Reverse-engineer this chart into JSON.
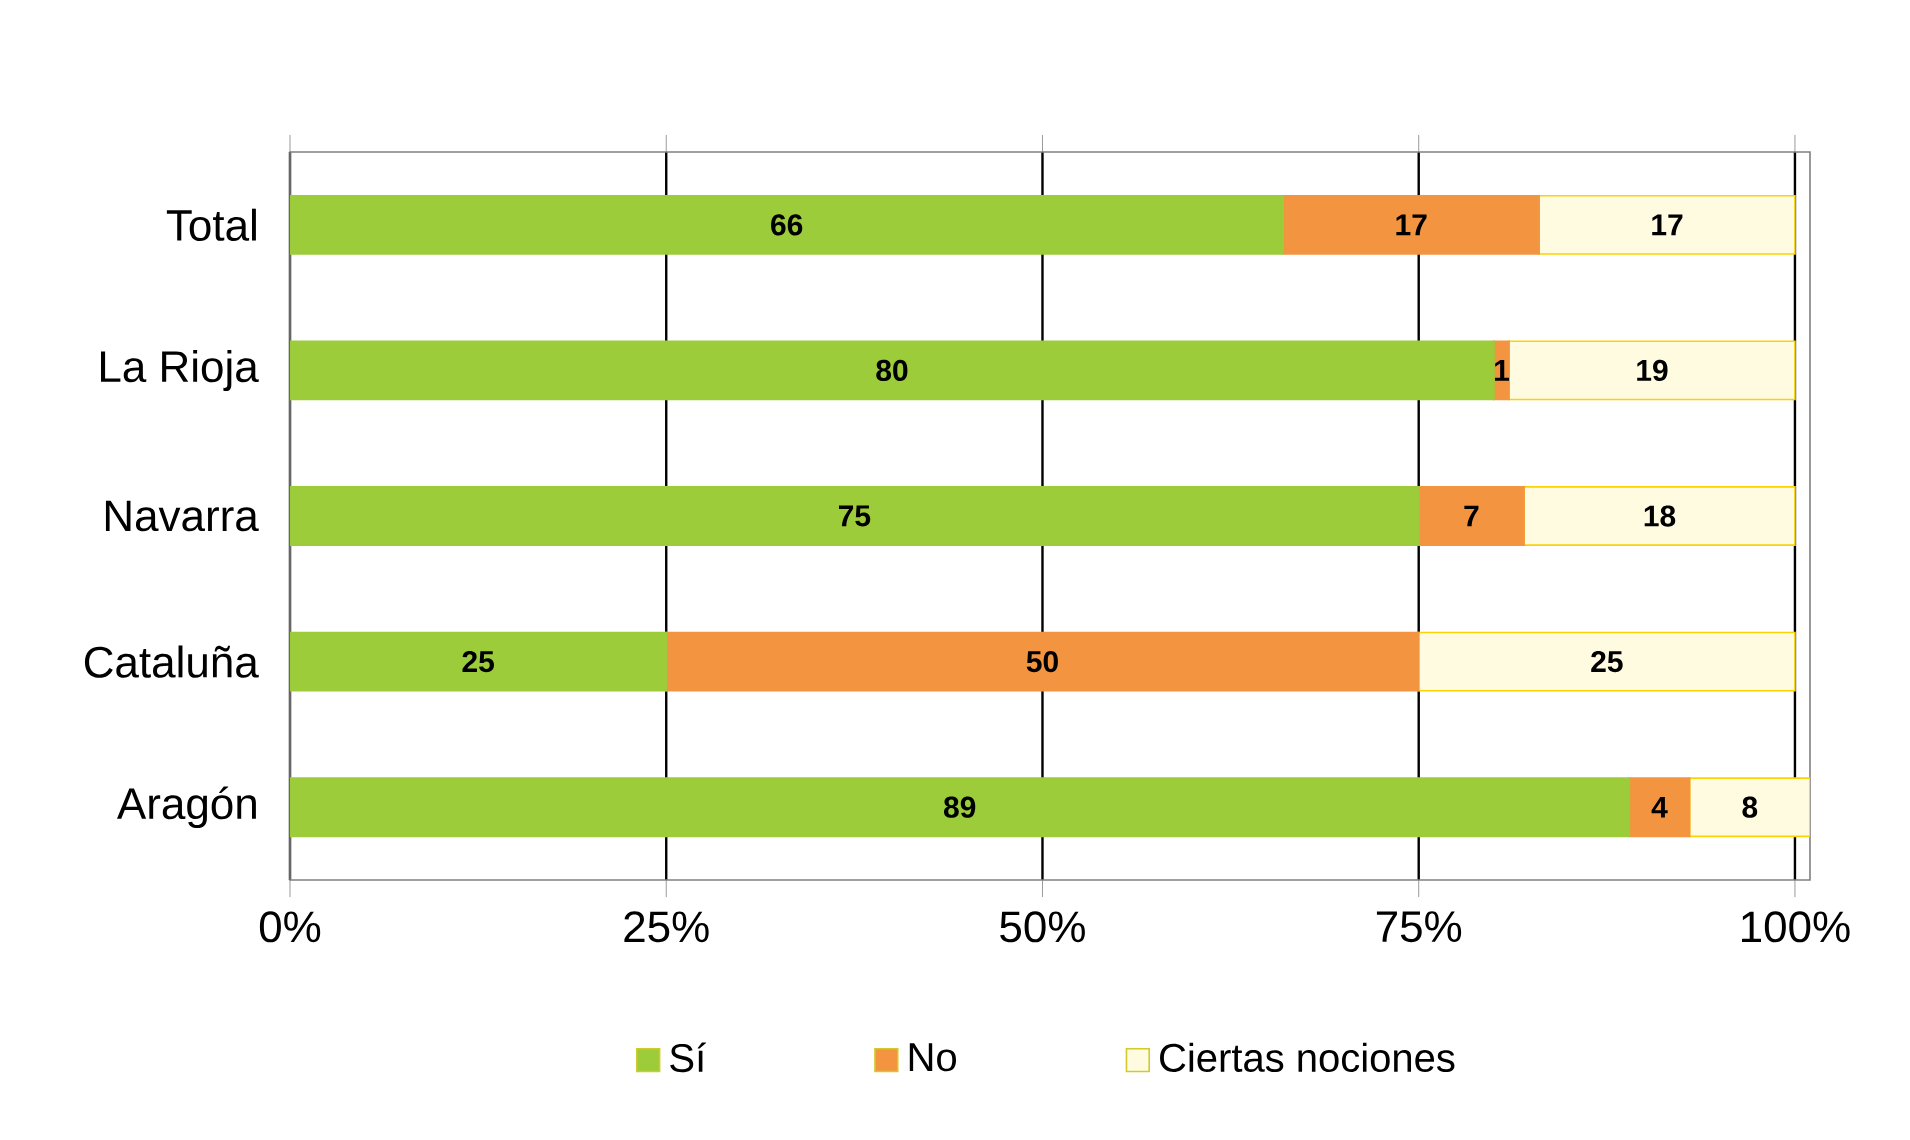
{
  "chart_data": {
    "type": "bar",
    "orientation": "horizontal",
    "stacked": true,
    "categories": [
      "Total",
      "La Rioja",
      "Navarra",
      "Cataluña",
      "Aragón"
    ],
    "series": [
      {
        "name": "Sí",
        "color": "#9ccc3a",
        "values": [
          66,
          80,
          75,
          25,
          89
        ]
      },
      {
        "name": "No",
        "color": "#f39440",
        "values": [
          17,
          1,
          7,
          50,
          4
        ]
      },
      {
        "name": "Ciertas nociones",
        "color": "#fffbe0",
        "values": [
          17,
          19,
          18,
          25,
          8
        ]
      }
    ],
    "xlim": [
      0,
      101
    ],
    "xticks": [
      {
        "value": 0,
        "label": "0%"
      },
      {
        "value": 25,
        "label": "25%"
      },
      {
        "value": 50,
        "label": "50%"
      },
      {
        "value": 75,
        "label": "75%"
      },
      {
        "value": 100,
        "label": "100%"
      }
    ],
    "grid": "x",
    "legend": "bottom",
    "data_labels": true
  }
}
